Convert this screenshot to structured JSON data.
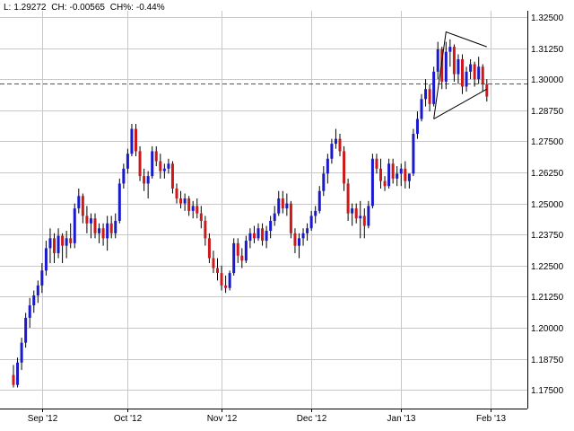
{
  "header": {
    "last_label": "L:",
    "last_value": "1.29272",
    "change_label": "CH:",
    "change_value": "-0.00565",
    "change_pct_label": "CH%:",
    "change_pct_value": "-0.44%"
  },
  "chart_data": {
    "type": "candlestick",
    "title": "",
    "xlabel": "",
    "ylabel": "",
    "ylim": [
      1.1675,
      1.3275
    ],
    "y_ticks": [
      "1.32500",
      "1.31250",
      "1.30000",
      "1.28750",
      "1.27500",
      "1.26250",
      "1.25000",
      "1.23750",
      "1.22500",
      "1.21250",
      "1.20000",
      "1.18750",
      "1.17500"
    ],
    "x_ticks": [
      {
        "label": "Sep '12",
        "index": 7
      },
      {
        "label": "Oct '12",
        "index": 28
      },
      {
        "label": "Nov '12",
        "index": 51
      },
      {
        "label": "Dec '12",
        "index": 73
      },
      {
        "label": "Jan '13",
        "index": 95
      },
      {
        "label": "Feb '13",
        "index": 117
      }
    ],
    "grid": true,
    "up_color": "#1a1acc",
    "down_color": "#cc1a1a",
    "reference_line": {
      "value": 1.29837,
      "style": "dashed"
    },
    "ohlc": [
      [
        1.181,
        1.185,
        1.176,
        1.177
      ],
      [
        1.177,
        1.188,
        1.176,
        1.186
      ],
      [
        1.186,
        1.196,
        1.183,
        1.194
      ],
      [
        1.194,
        1.206,
        1.192,
        1.204
      ],
      [
        1.204,
        1.212,
        1.2,
        1.209
      ],
      [
        1.209,
        1.215,
        1.206,
        1.213
      ],
      [
        1.213,
        1.219,
        1.21,
        1.217
      ],
      [
        1.217,
        1.226,
        1.214,
        1.223
      ],
      [
        1.223,
        1.235,
        1.221,
        1.232
      ],
      [
        1.232,
        1.24,
        1.226,
        1.236
      ],
      [
        1.236,
        1.238,
        1.226,
        1.23
      ],
      [
        1.23,
        1.24,
        1.228,
        1.237
      ],
      [
        1.237,
        1.238,
        1.226,
        1.233
      ],
      [
        1.233,
        1.239,
        1.228,
        1.236
      ],
      [
        1.236,
        1.242,
        1.232,
        1.234
      ],
      [
        1.234,
        1.25,
        1.232,
        1.248
      ],
      [
        1.248,
        1.256,
        1.246,
        1.253
      ],
      [
        1.253,
        1.254,
        1.242,
        1.245
      ],
      [
        1.245,
        1.249,
        1.238,
        1.242
      ],
      [
        1.242,
        1.246,
        1.236,
        1.244
      ],
      [
        1.244,
        1.246,
        1.236,
        1.238
      ],
      [
        1.238,
        1.242,
        1.234,
        1.24
      ],
      [
        1.24,
        1.242,
        1.233,
        1.236
      ],
      [
        1.236,
        1.245,
        1.231,
        1.242
      ],
      [
        1.242,
        1.245,
        1.236,
        1.238
      ],
      [
        1.238,
        1.246,
        1.236,
        1.243
      ],
      [
        1.243,
        1.26,
        1.242,
        1.258
      ],
      [
        1.258,
        1.266,
        1.256,
        1.264
      ],
      [
        1.264,
        1.272,
        1.262,
        1.27
      ],
      [
        1.27,
        1.282,
        1.269,
        1.28
      ],
      [
        1.28,
        1.282,
        1.269,
        1.271
      ],
      [
        1.271,
        1.273,
        1.259,
        1.261
      ],
      [
        1.261,
        1.264,
        1.255,
        1.258
      ],
      [
        1.258,
        1.263,
        1.252,
        1.261
      ],
      [
        1.261,
        1.273,
        1.26,
        1.271
      ],
      [
        1.271,
        1.273,
        1.265,
        1.267
      ],
      [
        1.267,
        1.27,
        1.26,
        1.263
      ],
      [
        1.263,
        1.266,
        1.26,
        1.264
      ],
      [
        1.264,
        1.268,
        1.262,
        1.266
      ],
      [
        1.266,
        1.267,
        1.254,
        1.256
      ],
      [
        1.256,
        1.258,
        1.25,
        1.252
      ],
      [
        1.252,
        1.255,
        1.248,
        1.25
      ],
      [
        1.25,
        1.254,
        1.247,
        1.252
      ],
      [
        1.252,
        1.253,
        1.245,
        1.247
      ],
      [
        1.247,
        1.251,
        1.244,
        1.249
      ],
      [
        1.249,
        1.252,
        1.244,
        1.246
      ],
      [
        1.246,
        1.249,
        1.24,
        1.243
      ],
      [
        1.243,
        1.245,
        1.233,
        1.236
      ],
      [
        1.236,
        1.238,
        1.226,
        1.228
      ],
      [
        1.228,
        1.231,
        1.222,
        1.224
      ],
      [
        1.224,
        1.228,
        1.219,
        1.222
      ],
      [
        1.222,
        1.225,
        1.215,
        1.217
      ],
      [
        1.217,
        1.221,
        1.214,
        1.216
      ],
      [
        1.216,
        1.223,
        1.215,
        1.222
      ],
      [
        1.222,
        1.236,
        1.221,
        1.234
      ],
      [
        1.234,
        1.236,
        1.226,
        1.229
      ],
      [
        1.229,
        1.232,
        1.224,
        1.227
      ],
      [
        1.227,
        1.237,
        1.226,
        1.235
      ],
      [
        1.235,
        1.24,
        1.232,
        1.238
      ],
      [
        1.238,
        1.241,
        1.234,
        1.236
      ],
      [
        1.236,
        1.242,
        1.235,
        1.24
      ],
      [
        1.24,
        1.242,
        1.233,
        1.235
      ],
      [
        1.235,
        1.241,
        1.232,
        1.239
      ],
      [
        1.239,
        1.245,
        1.236,
        1.243
      ],
      [
        1.243,
        1.249,
        1.241,
        1.246
      ],
      [
        1.246,
        1.255,
        1.245,
        1.252
      ],
      [
        1.252,
        1.255,
        1.246,
        1.248
      ],
      [
        1.248,
        1.254,
        1.245,
        1.25
      ],
      [
        1.25,
        1.251,
        1.236,
        1.238
      ],
      [
        1.238,
        1.24,
        1.23,
        1.233
      ],
      [
        1.233,
        1.238,
        1.228,
        1.236
      ],
      [
        1.236,
        1.24,
        1.233,
        1.238
      ],
      [
        1.238,
        1.242,
        1.235,
        1.24
      ],
      [
        1.24,
        1.247,
        1.239,
        1.245
      ],
      [
        1.245,
        1.249,
        1.242,
        1.247
      ],
      [
        1.247,
        1.257,
        1.246,
        1.255
      ],
      [
        1.255,
        1.265,
        1.253,
        1.262
      ],
      [
        1.262,
        1.27,
        1.258,
        1.268
      ],
      [
        1.268,
        1.276,
        1.266,
        1.274
      ],
      [
        1.274,
        1.28,
        1.272,
        1.276
      ],
      [
        1.276,
        1.278,
        1.269,
        1.271
      ],
      [
        1.271,
        1.273,
        1.255,
        1.258
      ],
      [
        1.258,
        1.26,
        1.243,
        1.246
      ],
      [
        1.246,
        1.25,
        1.241,
        1.248
      ],
      [
        1.248,
        1.25,
        1.242,
        1.244
      ],
      [
        1.244,
        1.251,
        1.236,
        1.245
      ],
      [
        1.245,
        1.248,
        1.236,
        1.241
      ],
      [
        1.241,
        1.251,
        1.24,
        1.249
      ],
      [
        1.249,
        1.27,
        1.248,
        1.268
      ],
      [
        1.268,
        1.27,
        1.262,
        1.264
      ],
      [
        1.264,
        1.268,
        1.256,
        1.259
      ],
      [
        1.259,
        1.261,
        1.255,
        1.257
      ],
      [
        1.257,
        1.268,
        1.256,
        1.266
      ],
      [
        1.266,
        1.268,
        1.258,
        1.26
      ],
      [
        1.26,
        1.265,
        1.257,
        1.262
      ],
      [
        1.262,
        1.266,
        1.257,
        1.264
      ],
      [
        1.264,
        1.267,
        1.256,
        1.259
      ],
      [
        1.259,
        1.262,
        1.256,
        1.262
      ],
      [
        1.262,
        1.28,
        1.261,
        1.278
      ],
      [
        1.278,
        1.287,
        1.276,
        1.284
      ],
      [
        1.284,
        1.294,
        1.283,
        1.292
      ],
      [
        1.292,
        1.3,
        1.289,
        1.296
      ],
      [
        1.296,
        1.298,
        1.287,
        1.29
      ],
      [
        1.29,
        1.305,
        1.289,
        1.303
      ],
      [
        1.303,
        1.315,
        1.3,
        1.312
      ],
      [
        1.312,
        1.313,
        1.296,
        1.299
      ],
      [
        1.299,
        1.315,
        1.296,
        1.311
      ],
      [
        1.311,
        1.316,
        1.305,
        1.313
      ],
      [
        1.313,
        1.314,
        1.299,
        1.302
      ],
      [
        1.302,
        1.31,
        1.298,
        1.308
      ],
      [
        1.308,
        1.31,
        1.294,
        1.297
      ],
      [
        1.297,
        1.305,
        1.295,
        1.303
      ],
      [
        1.303,
        1.308,
        1.3,
        1.306
      ],
      [
        1.306,
        1.307,
        1.297,
        1.3
      ],
      [
        1.3,
        1.309,
        1.298,
        1.305
      ],
      [
        1.305,
        1.306,
        1.295,
        1.298
      ],
      [
        1.298,
        1.3,
        1.291,
        1.293
      ]
    ]
  }
}
